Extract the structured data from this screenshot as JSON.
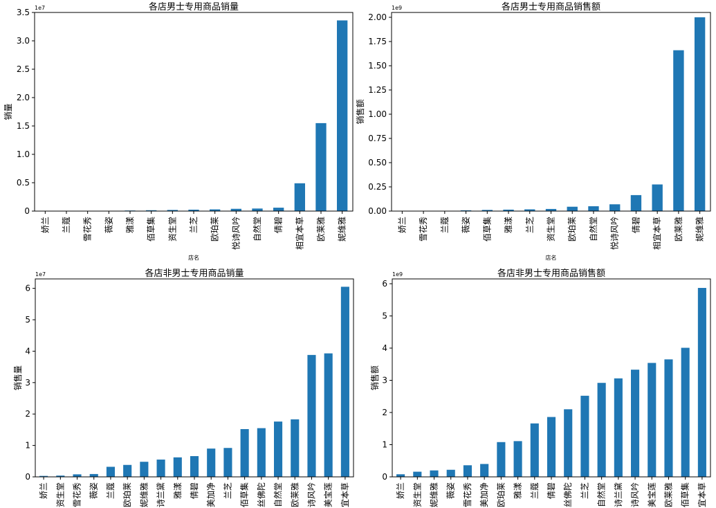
{
  "chart_data": [
    {
      "type": "bar",
      "title": "各店男士专用商品销量",
      "xlabel": "店名",
      "ylabel": "销量",
      "y_offset_label": "1e7",
      "ylim": [
        0,
        3.5
      ],
      "yticks": [
        0,
        0.5,
        1.0,
        1.5,
        2.0,
        2.5,
        3.0,
        3.5
      ],
      "ytick_labels": [
        "0",
        "0.5",
        "1.0",
        "1.5",
        "2.0",
        "2.5",
        "3.0",
        "3.5"
      ],
      "color": "#1f77b4",
      "grid": false,
      "categories": [
        "娇兰",
        "兰蔻",
        "雪花秀",
        "薇姿",
        "雅漾",
        "佰草集",
        "资生堂",
        "兰芝",
        "欧珀莱",
        "悦诗风吟",
        "自然堂",
        "倩碧",
        "相宜本草",
        "欧莱雅",
        "妮维雅"
      ],
      "values": [
        0.002,
        0.003,
        0.004,
        0.005,
        0.01,
        0.015,
        0.02,
        0.025,
        0.03,
        0.04,
        0.045,
        0.06,
        0.49,
        1.55,
        3.36
      ]
    },
    {
      "type": "bar",
      "title": "各店男士专用商品销售额",
      "xlabel": "店名",
      "ylabel": "销售额",
      "y_offset_label": "1e9",
      "ylim": [
        0,
        2.05
      ],
      "yticks": [
        0,
        0.25,
        0.5,
        0.75,
        1.0,
        1.25,
        1.5,
        1.75,
        2.0
      ],
      "ytick_labels": [
        "0.00",
        "0.25",
        "0.50",
        "0.75",
        "1.00",
        "1.25",
        "1.50",
        "1.75",
        "2.00"
      ],
      "color": "#1f77b4",
      "grid": false,
      "categories": [
        "娇兰",
        "雪花秀",
        "兰蔻",
        "薇姿",
        "佰草集",
        "雅漾",
        "兰芝",
        "资生堂",
        "欧珀莱",
        "自然堂",
        "悦诗风吟",
        "倩碧",
        "相宜本草",
        "欧莱雅",
        "妮维雅"
      ],
      "values": [
        0.001,
        0.002,
        0.003,
        0.008,
        0.012,
        0.015,
        0.018,
        0.022,
        0.045,
        0.05,
        0.07,
        0.165,
        0.275,
        1.66,
        2.0
      ]
    },
    {
      "type": "bar",
      "title": "各店非男士专用商品销量",
      "xlabel": "",
      "ylabel": "销售量",
      "y_offset_label": "1e7",
      "ylim": [
        0,
        6.3
      ],
      "yticks": [
        0,
        1,
        2,
        3,
        4,
        5,
        6
      ],
      "ytick_labels": [
        "0",
        "1",
        "2",
        "3",
        "4",
        "5",
        "6"
      ],
      "color": "#1f77b4",
      "grid": false,
      "categories": [
        "娇兰",
        "资生堂",
        "雪花秀",
        "薇姿",
        "兰蔻",
        "欧珀莱",
        "妮维雅",
        "诗兰黛",
        "雅漾",
        "倩碧",
        "美加净",
        "兰芝",
        "佰草集",
        "丝佛陀",
        "自然堂",
        "欧莱雅",
        "诗风吟",
        "美宝莲",
        "宜本草"
      ],
      "values": [
        0.03,
        0.04,
        0.08,
        0.09,
        0.32,
        0.38,
        0.48,
        0.55,
        0.62,
        0.66,
        0.9,
        0.92,
        1.52,
        1.55,
        1.76,
        1.83,
        3.88,
        3.93,
        6.05
      ]
    },
    {
      "type": "bar",
      "title": "各店非男士专用商品销售额",
      "xlabel": "",
      "ylabel": "销售额",
      "y_offset_label": "1e9",
      "ylim": [
        0,
        6.15
      ],
      "yticks": [
        0,
        1,
        2,
        3,
        4,
        5,
        6
      ],
      "ytick_labels": [
        "0",
        "1",
        "2",
        "3",
        "4",
        "5",
        "6"
      ],
      "color": "#1f77b4",
      "grid": false,
      "categories": [
        "娇兰",
        "资生堂",
        "妮维雅",
        "薇姿",
        "雪花秀",
        "美加净",
        "欧珀莱",
        "雅漾",
        "兰蔻",
        "倩碧",
        "丝佛陀",
        "兰芝",
        "自然堂",
        "诗兰黛",
        "诗风吟",
        "美宝莲",
        "欧莱雅",
        "佰草集",
        "宜本草"
      ],
      "values": [
        0.08,
        0.16,
        0.2,
        0.22,
        0.36,
        0.4,
        1.08,
        1.11,
        1.66,
        1.86,
        2.1,
        2.52,
        2.92,
        3.06,
        3.33,
        3.54,
        3.65,
        4.01,
        5.87
      ]
    }
  ]
}
